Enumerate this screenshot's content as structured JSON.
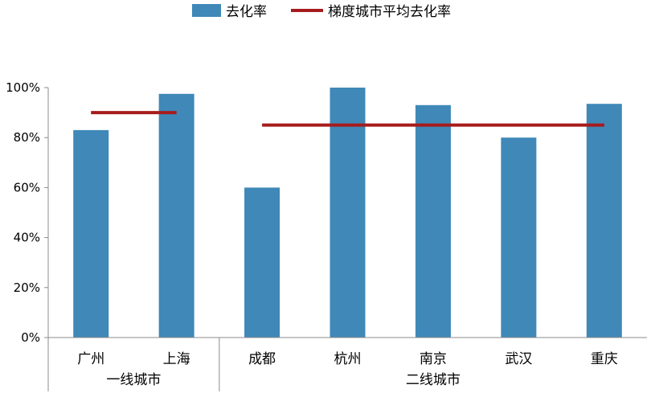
{
  "chart_data": {
    "type": "bar",
    "ylim": [
      0,
      100
    ],
    "yticks": [
      "0%",
      "20%",
      "40%",
      "60%",
      "80%",
      "100%"
    ],
    "ytick_values": [
      0,
      20,
      40,
      60,
      80,
      100
    ],
    "grid": false,
    "legend_position": "top",
    "categories": [
      "广州",
      "上海",
      "成都",
      "杭州",
      "南京",
      "武汉",
      "重庆"
    ],
    "groups": [
      {
        "label": "一线城市",
        "categories": [
          "广州",
          "上海"
        ]
      },
      {
        "label": "二线城市",
        "categories": [
          "成都",
          "杭州",
          "南京",
          "武汉",
          "重庆"
        ]
      }
    ],
    "series": [
      {
        "name": "去化率",
        "kind": "bar",
        "color": "#3F88B8",
        "values": [
          83,
          97.5,
          60,
          100,
          93,
          80,
          93.5
        ]
      },
      {
        "name": "梯度城市平均去化率",
        "kind": "line",
        "color": "#A61C1C",
        "segments": [
          {
            "group": "一线城市",
            "value": 90
          },
          {
            "group": "二线城市",
            "value": 85
          }
        ]
      }
    ]
  }
}
